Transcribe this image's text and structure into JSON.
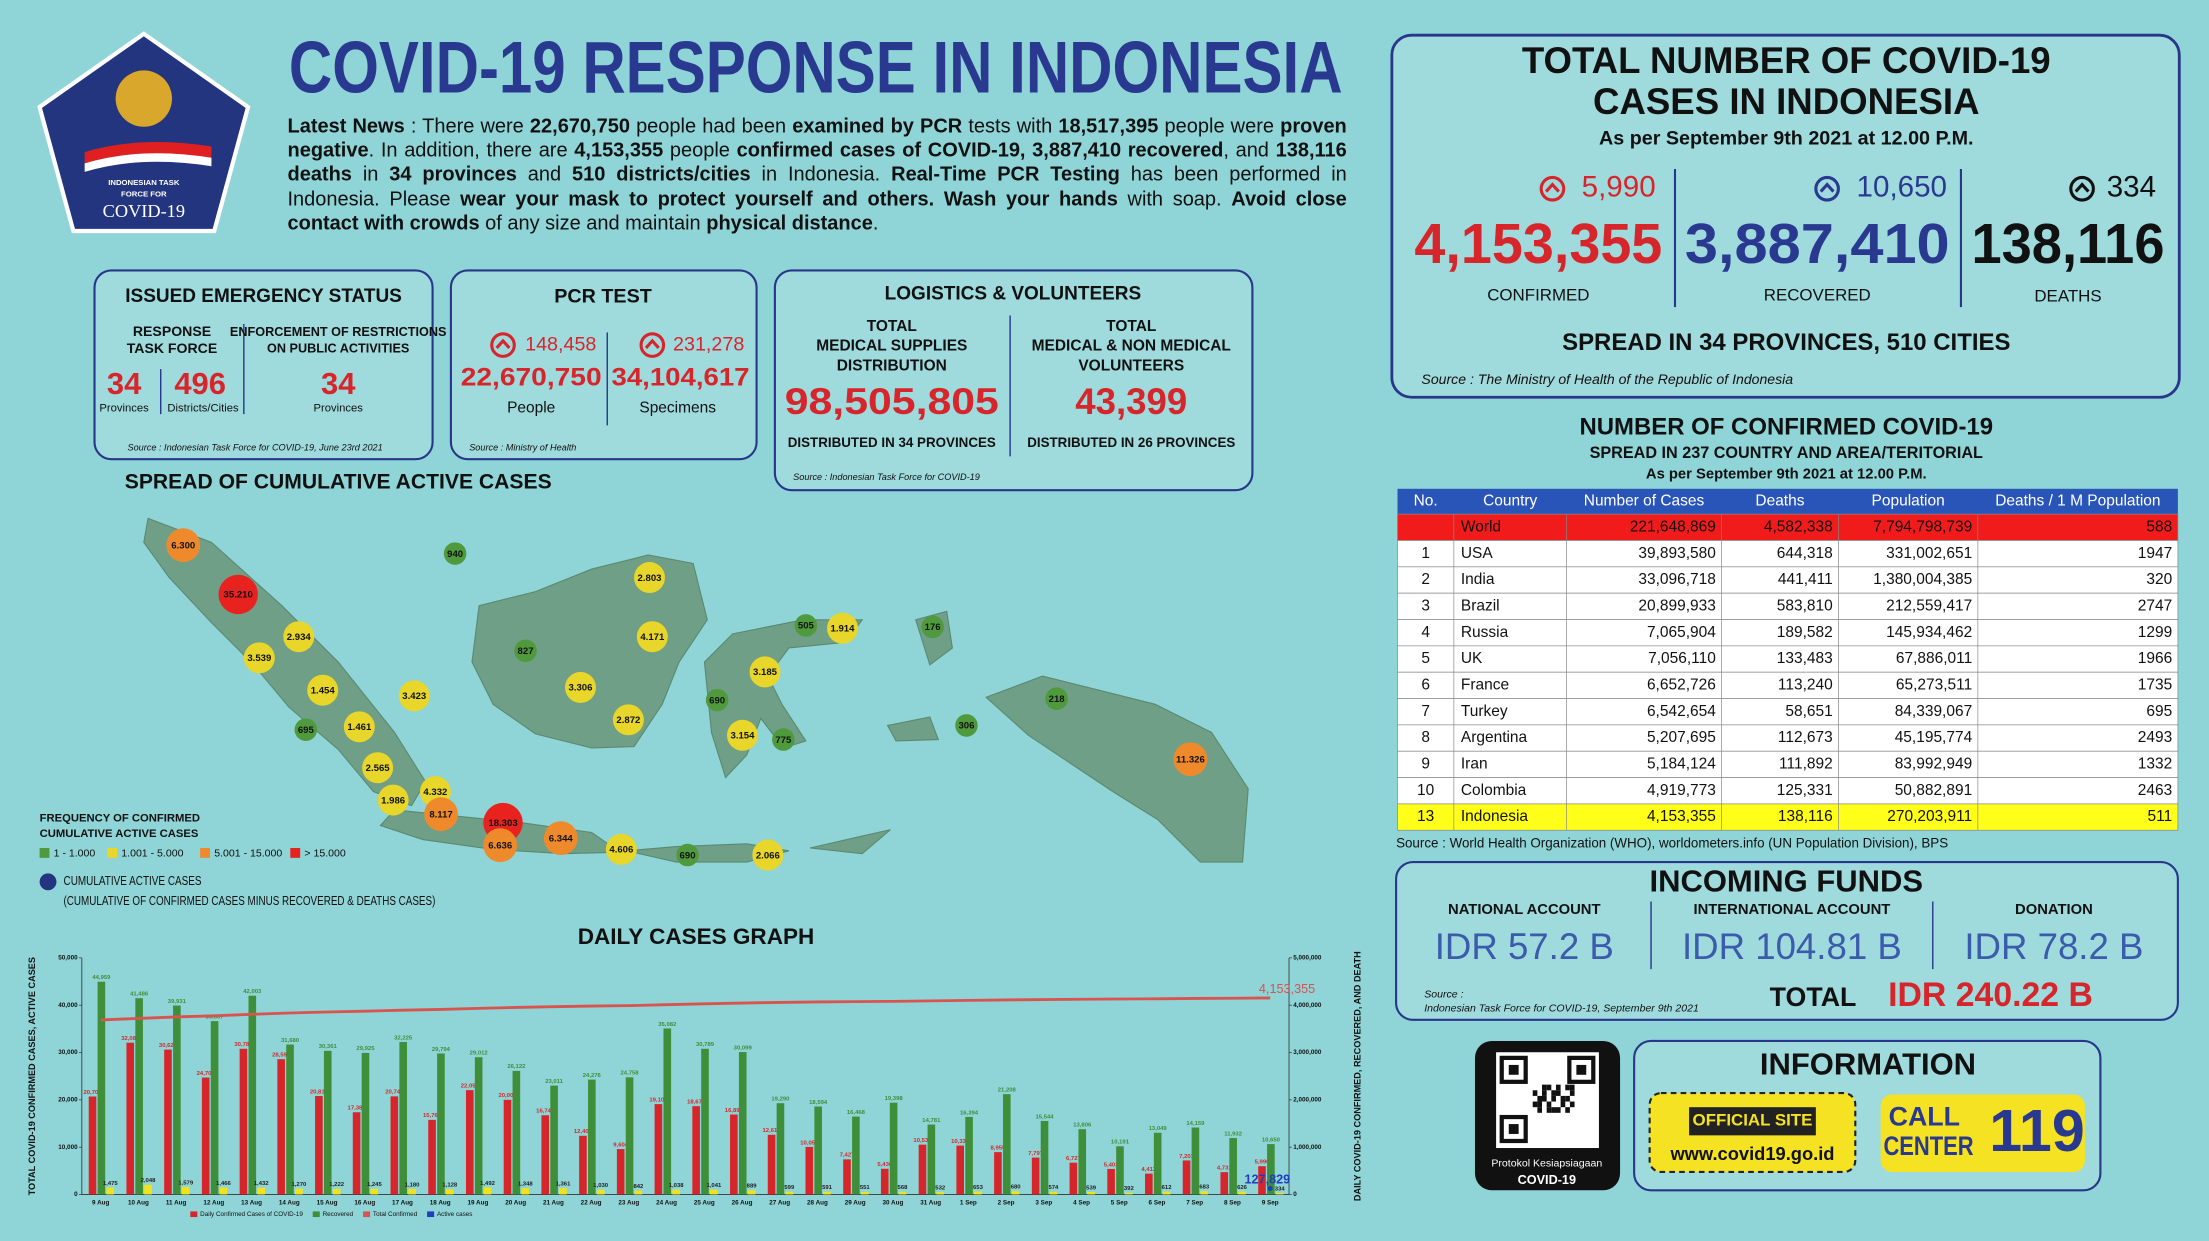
{
  "header": {
    "title": "COVID-19 RESPONSE IN INDONESIA",
    "logo": [
      "INDONESIAN TASK",
      "FORCE FOR",
      "COVID-19"
    ]
  },
  "news": [
    {
      "text": "Latest News",
      "b": true
    },
    {
      "text": " : There were "
    },
    {
      "text": "22,670,750",
      "b": true
    },
    {
      "text": " people had been "
    },
    {
      "text": "examined by PCR",
      "b": true
    },
    {
      "text": " tests with "
    },
    {
      "text": "18,517,395",
      "b": true
    },
    {
      "text": " people were "
    },
    {
      "text": "proven negative",
      "b": true
    },
    {
      "text": ". In addition, there are "
    },
    {
      "text": "4,153,355",
      "b": true
    },
    {
      "text": " people "
    },
    {
      "text": "confirmed cases of COVID-19, 3,887,410 recovered",
      "b": true
    },
    {
      "text": ", and "
    },
    {
      "text": "138,116 deaths",
      "b": true
    },
    {
      "text": " in "
    },
    {
      "text": "34 provinces",
      "b": true
    },
    {
      "text": " and "
    },
    {
      "text": "510 districts/cities",
      "b": true
    },
    {
      "text": " in Indonesia. "
    },
    {
      "text": "Real-Time PCR Testing",
      "b": true
    },
    {
      "text": " has been performed in Indonesia. Please "
    },
    {
      "text": "wear your mask to protect yourself and others. Wash your hands",
      "b": true
    },
    {
      "text": " with soap. "
    },
    {
      "text": "Avoid close contact with crowds",
      "b": true
    },
    {
      "text": " of any size and maintain "
    },
    {
      "text": "physical distance",
      "b": true
    },
    {
      "text": "."
    }
  ],
  "emergency": {
    "title": "ISSUED EMERGENCY STATUS",
    "response": [
      "RESPONSE",
      "TASK FORCE"
    ],
    "enforcement": [
      "ENFORCEMENT OF RESTRICTIONS",
      "ON PUBLIC ACTIVITIES"
    ],
    "provinces": "34",
    "districts": "496",
    "enforcement_provinces": "34",
    "provinces_label": "Provinces",
    "districts_label": "Districts/Cities",
    "enforcement_label": "Provinces",
    "source": "Source : Indonesian Task Force for COVID-19, June 23rd 2021"
  },
  "pcr": {
    "title": "PCR TEST",
    "people_increase": "148,458",
    "specimens_increase": "231,278",
    "people": "22,670,750",
    "specimens": "34,104,617",
    "people_label": "People",
    "specimens_label": "Specimens",
    "source": "Source : Ministry of Health"
  },
  "logistics": {
    "title": "LOGISTICS & VOLUNTEERS",
    "supplies_label": [
      "TOTAL",
      "MEDICAL SUPPLIES",
      "DISTRIBUTION"
    ],
    "volunteers_label": [
      "TOTAL",
      "MEDICAL & NON MEDICAL",
      "VOLUNTEERS"
    ],
    "supplies": "98,505,805",
    "volunteers": "43,399",
    "supplies_note": "DISTRIBUTED IN 34 PROVINCES",
    "volunteers_note": "DISTRIBUTED IN 26 PROVINCES",
    "source": "Source : Indonesian Task Force for COVID-19"
  },
  "total": {
    "title": [
      "TOTAL NUMBER OF COVID-19",
      "CASES IN INDONESIA"
    ],
    "date": "As per September 9th 2021 at 12.00 P.M.",
    "confirmed_increase": "5,990",
    "recovered_increase": "10,650",
    "deaths_increase": "334",
    "confirmed": "4,153,355",
    "recovered": "3,887,410",
    "deaths": "138,116",
    "confirmed_label": "CONFIRMED",
    "recovered_label": "RECOVERED",
    "deaths_label": "DEATHS",
    "spread": "SPREAD IN 34 PROVINCES, 510 CITIES",
    "source": "Source : The Ministry of Health of the Republic of Indonesia"
  },
  "map": {
    "title": "SPREAD OF CUMULATIVE ACTIVE CASES",
    "legend_title": [
      "FREQUENCY OF CONFIRMED",
      "CUMULATIVE ACTIVE CASES"
    ],
    "classes": [
      {
        "label": "1 - 1.000",
        "color": "#4f9a3c"
      },
      {
        "label": "1.001 - 5.000",
        "color": "#e8d62a"
      },
      {
        "label": "5.001 - 15.000",
        "color": "#ef8a2c"
      },
      {
        "label": "> 15.000",
        "color": "#e8231f"
      }
    ],
    "active_label": "CUMULATIVE ACTIVE CASES",
    "active_note": "(CUMULATIVE OF CONFIRMED CASES MINUS RECOVERED & DEATHS CASES)",
    "bubbles": [
      {
        "label": "6.300",
        "class": 2
      },
      {
        "label": "940",
        "class": 0
      },
      {
        "label": "35.210",
        "class": 3
      },
      {
        "label": "2.803",
        "class": 1
      },
      {
        "label": "2.934",
        "class": 1
      },
      {
        "label": "827",
        "class": 0
      },
      {
        "label": "4.171",
        "class": 1
      },
      {
        "label": "505",
        "class": 0
      },
      {
        "label": "1.914",
        "class": 1
      },
      {
        "label": "176",
        "class": 0
      },
      {
        "label": "3.539",
        "class": 1
      },
      {
        "label": "3.306",
        "class": 1
      },
      {
        "label": "3.185",
        "class": 1
      },
      {
        "label": "1.454",
        "class": 1
      },
      {
        "label": "3.423",
        "class": 1
      },
      {
        "label": "690",
        "class": 0
      },
      {
        "label": "218",
        "class": 0
      },
      {
        "label": "695",
        "class": 0
      },
      {
        "label": "1.461",
        "class": 1
      },
      {
        "label": "2.872",
        "class": 1
      },
      {
        "label": "3.154",
        "class": 1
      },
      {
        "label": "775",
        "class": 0
      },
      {
        "label": "306",
        "class": 0
      },
      {
        "label": "11.326",
        "class": 2
      },
      {
        "label": "2.565",
        "class": 1
      },
      {
        "label": "4.332",
        "class": 1
      },
      {
        "label": "1.986",
        "class": 1
      },
      {
        "label": "8.117",
        "class": 2
      },
      {
        "label": "18.303",
        "class": 3
      },
      {
        "label": "6.636",
        "class": 2
      },
      {
        "label": "6.344",
        "class": 2
      },
      {
        "label": "4.606",
        "class": 1
      },
      {
        "label": "690",
        "class": 0
      },
      {
        "label": "2.066",
        "class": 1
      }
    ]
  },
  "chart_data": {
    "type": "bar",
    "title": "DAILY CASES GRAPH",
    "ylabel": "TOTAL COVID-19 CONFIRMED CASES, ACTIVE CASES",
    "y2label": "DAILY COVID-19 CONFIRMED, RECOVERED, AND DEATH",
    "categories": [
      "9 Aug",
      "10 Aug",
      "11 Aug",
      "12 Aug",
      "13 Aug",
      "14 Aug",
      "15 Aug",
      "16 Aug",
      "17 Aug",
      "18 Aug",
      "19 Aug",
      "20 Aug",
      "21 Aug",
      "22 Aug",
      "23 Aug",
      "24 Aug",
      "25 Aug",
      "26 Aug",
      "27 Aug",
      "28 Aug",
      "29 Aug",
      "30 Aug",
      "31 Aug",
      "1 Sep",
      "2 Sep",
      "3 Sep",
      "4 Sep",
      "5 Sep",
      "6 Sep",
      "7 Sep",
      "8 Sep",
      "9 Sep"
    ],
    "ylim": [
      0,
      50000
    ],
    "yticks": [
      0,
      {
        "value": 10000,
        "label": "10,000"
      },
      {
        "value": 20000,
        "label": "20,000"
      },
      {
        "value": 30000,
        "label": "30,000"
      },
      {
        "value": 40000,
        "label": "40,000"
      },
      {
        "value": 50000,
        "label": "50,000"
      }
    ],
    "y2lim": [
      0,
      5000000
    ],
    "y2ticks": [
      0,
      {
        "value": 1000000,
        "label": "1,000,000"
      },
      {
        "value": 2000000,
        "label": "2,000,000"
      },
      {
        "value": 3000000,
        "label": "3,000,000"
      },
      {
        "value": 4000000,
        "label": "4,000,000"
      },
      {
        "value": 5000000,
        "label": "5,000,000"
      }
    ],
    "series": [
      {
        "name": "Daily Confirmed Cases of COVID-19",
        "type": "bar",
        "color": "#d7262b",
        "values": [
          20709,
          32081,
          30625,
          24709,
          30788,
          28598,
          20813,
          17384,
          20741,
          15768,
          22053,
          20004,
          16744,
          12408,
          9604,
          19106,
          18671,
          16899,
          12618,
          10050,
          7427,
          5436,
          10534,
          10337,
          8955,
          7797,
          6727,
          5403,
          4413,
          7201,
          4731,
          5990
        ],
        "value_labels": [
          "20,709",
          "32,081",
          "30,625",
          "24,709",
          "30,788",
          "28,598",
          "20,813",
          "17,384",
          "20,741",
          "15,768",
          "22,053",
          "20,004",
          "16,744",
          "12,408",
          "9,604",
          "19,106",
          "18,671",
          "16,899",
          "12,618",
          "10,050",
          "7,427",
          "5,436",
          "10,534",
          "10,337",
          "8,955",
          "7,797",
          "6,727",
          "5,403",
          "4,413",
          "7,201",
          "4,731",
          "5,990"
        ]
      },
      {
        "name": "Recovered",
        "type": "bar",
        "color": "#3f8f3a",
        "values": [
          44959,
          41486,
          39931,
          36637,
          42003,
          31680,
          30361,
          29925,
          32225,
          29794,
          29012,
          26122,
          23011,
          24276,
          24758,
          35082,
          30789,
          30099,
          19290,
          18594,
          16468,
          19398,
          14781,
          16394,
          21208,
          15544,
          13806,
          10191,
          13049,
          14159,
          11932,
          10650
        ],
        "value_labels": [
          "44,959",
          "41,486",
          "39,931",
          "36,637",
          "42,003",
          "31,680",
          "30,361",
          "29,925",
          "32,225",
          "29,794",
          "29,012",
          "26,122",
          "23,011",
          "24,276",
          "24,758",
          "35,082",
          "30,789",
          "30,099",
          "19,290",
          "18,594",
          "16,468",
          "19,398",
          "14,781",
          "16,394",
          "21,208",
          "15,544",
          "13,806",
          "10,191",
          "13,049",
          "14,159",
          "11,932",
          "10,650"
        ]
      },
      {
        "type": "bar",
        "color": "#f2e21e",
        "values": [
          1475,
          2048,
          1579,
          1466,
          1432,
          1270,
          1222,
          1245,
          1180,
          1128,
          1492,
          1348,
          1361,
          1030,
          842,
          1038,
          1041,
          889,
          599,
          591,
          551,
          568,
          532,
          653,
          680,
          574,
          539,
          392,
          612,
          683,
          626,
          334
        ],
        "value_labels": [
          "1,475",
          "2,048",
          "1,579",
          "1,466",
          "1,432",
          "1,270",
          "1,222",
          "1,245",
          "1,180",
          "1,128",
          "1,492",
          "1,348",
          "1,361",
          "1,030",
          "842",
          "1,038",
          "1,041",
          "889",
          "599",
          "591",
          "551",
          "568",
          "532",
          "653",
          "680",
          "574",
          "539",
          "392",
          "612",
          "683",
          "626",
          "334"
        ]
      },
      {
        "name": "Total Confirmed",
        "type": "line",
        "axis": "y2",
        "color": "#d9534f",
        "values": [
          3688740,
          3720821,
          3751446,
          3776155,
          3806943,
          3835541,
          3856354,
          3873738,
          3894479,
          3910247,
          3932300,
          3952304,
          3969048,
          3981456,
          3991060,
          4010166,
          4028837,
          4045736,
          4058354,
          4068404,
          4075831,
          4081267,
          4091801,
          4102138,
          4111093,
          4118890,
          4125617,
          4131020,
          4135433,
          4142634,
          4147365,
          4153355
        ],
        "value_labels": [
          null,
          null,
          null,
          null,
          null,
          null,
          null,
          null,
          null,
          null,
          null,
          null,
          null,
          null,
          null,
          null,
          null,
          null,
          null,
          null,
          null,
          null,
          null,
          null,
          null,
          null,
          null,
          null,
          null,
          null,
          null,
          "4,153,355"
        ]
      },
      {
        "name": "Active cases",
        "type": "point",
        "axis": "y2",
        "color": "#1f3fbf",
        "values": [
          null,
          null,
          null,
          null,
          null,
          null,
          null,
          null,
          null,
          null,
          null,
          null,
          null,
          null,
          null,
          null,
          null,
          null,
          null,
          null,
          null,
          null,
          null,
          null,
          null,
          null,
          null,
          null,
          null,
          null,
          null,
          127829
        ],
        "value_labels": [
          null,
          null,
          null,
          null,
          null,
          null,
          null,
          null,
          null,
          null,
          null,
          null,
          null,
          null,
          null,
          null,
          null,
          null,
          null,
          null,
          null,
          null,
          null,
          null,
          null,
          null,
          null,
          null,
          null,
          null,
          null,
          "127,829"
        ]
      }
    ]
  },
  "world": {
    "title": "NUMBER OF CONFIRMED COVID-19",
    "subtitle": "SPREAD IN 237 COUNTRY AND AREA/TERITORIAL",
    "date": "As per September 9th 2021 at 12.00 P.M.",
    "columns": [
      "No.",
      "Country",
      "Number of Cases",
      "Deaths",
      "Population",
      "Deaths / 1 M Population"
    ],
    "rows": [
      {
        "cells": [
          null,
          "World",
          "221,648,869",
          "4,582,338",
          "7,794,798,739",
          "588"
        ],
        "fill": "#f21b1b"
      },
      {
        "cells": [
          "1",
          "USA",
          "39,893,580",
          "644,318",
          "331,002,651",
          "1947"
        ]
      },
      {
        "cells": [
          "2",
          "India",
          "33,096,718",
          "441,411",
          "1,380,004,385",
          "320"
        ]
      },
      {
        "cells": [
          "3",
          "Brazil",
          "20,899,933",
          "583,810",
          "212,559,417",
          "2747"
        ]
      },
      {
        "cells": [
          "4",
          "Russia",
          "7,065,904",
          "189,582",
          "145,934,462",
          "1299"
        ]
      },
      {
        "cells": [
          "5",
          "UK",
          "7,056,110",
          "133,483",
          "67,886,011",
          "1966"
        ]
      },
      {
        "cells": [
          "6",
          "France",
          "6,652,726",
          "113,240",
          "65,273,511",
          "1735"
        ]
      },
      {
        "cells": [
          "7",
          "Turkey",
          "6,542,654",
          "58,651",
          "84,339,067",
          "695"
        ]
      },
      {
        "cells": [
          "8",
          "Argentina",
          "5,207,695",
          "112,673",
          "45,195,774",
          "2493"
        ]
      },
      {
        "cells": [
          "9",
          "Iran",
          "5,184,124",
          "111,892",
          "83,992,949",
          "1332"
        ]
      },
      {
        "cells": [
          "10",
          "Colombia",
          "4,919,773",
          "125,331",
          "50,882,891",
          "2463"
        ]
      },
      {
        "cells": [
          "13",
          "Indonesia",
          "4,153,355",
          "138,116",
          "270,203,911",
          "511"
        ],
        "fill": "#ffff1a"
      }
    ],
    "source": "Source : World Health Organization (WHO), worldometers.info (UN Population Division), BPS"
  },
  "funds": {
    "title": "INCOMING FUNDS",
    "columns": [
      "NATIONAL ACCOUNT",
      "INTERNATIONAL ACCOUNT",
      "DONATION"
    ],
    "values": [
      "IDR 57.2 B",
      "IDR 104.81 B",
      "IDR 78.2 B"
    ],
    "source": [
      "Source :",
      "Indonesian Task Force for COVID-19, September 9th 2021"
    ],
    "total_label": "TOTAL",
    "total": "IDR 240.22 B"
  },
  "qr": {
    "caption": [
      "Protokol Kesiapsiagaan",
      "COVID-19"
    ]
  },
  "info": {
    "title": "INFORMATION",
    "site_label": "OFFICIAL SITE",
    "site": "www.covid19.go.id",
    "call": [
      "CALL",
      "CENTER"
    ],
    "number": "119"
  }
}
